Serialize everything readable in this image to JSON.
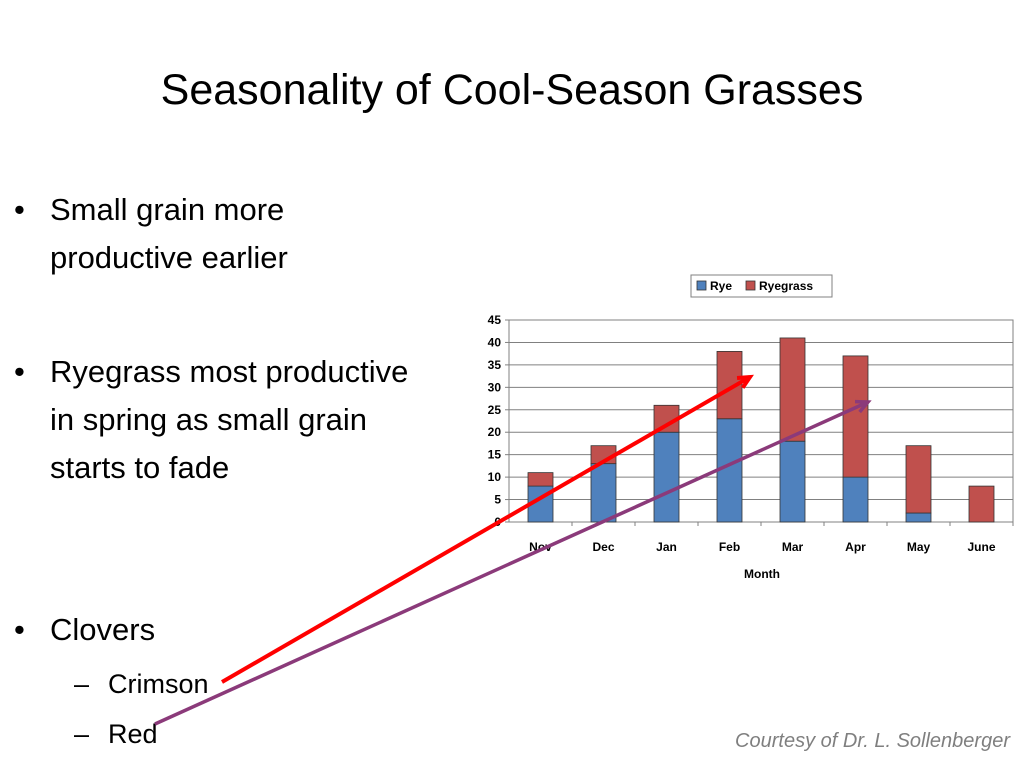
{
  "slide": {
    "title": "Seasonality of Cool-Season Grasses",
    "bullets": [
      "Small grain more productive earlier",
      "Ryegrass most productive in spring as small grain starts to fade",
      "Clovers"
    ],
    "sub_bullets": [
      "Crimson",
      "Red"
    ],
    "credit": "Courtesy of Dr. L. Sollenberger"
  },
  "colors": {
    "rye": "#4f81bd",
    "ryegrass": "#c0504d",
    "crimson_arrow": "#ff0000",
    "red_arrow": "#8b3a7a"
  },
  "chart_data": {
    "type": "bar",
    "stacked": true,
    "categories": [
      "Nov",
      "Dec",
      "Jan",
      "Feb",
      "Mar",
      "Apr",
      "May",
      "June"
    ],
    "series": [
      {
        "name": "Rye",
        "values": [
          8,
          13,
          20,
          23,
          18,
          10,
          2,
          0
        ]
      },
      {
        "name": "Ryegrass",
        "values": [
          3,
          4,
          6,
          15,
          23,
          27,
          15,
          8
        ]
      }
    ],
    "xlabel": "Month",
    "ylabel": "",
    "ylim": [
      0,
      45
    ],
    "yticks": [
      0,
      5,
      10,
      15,
      20,
      25,
      30,
      35,
      40,
      45
    ],
    "grid": true,
    "legend": "top"
  }
}
